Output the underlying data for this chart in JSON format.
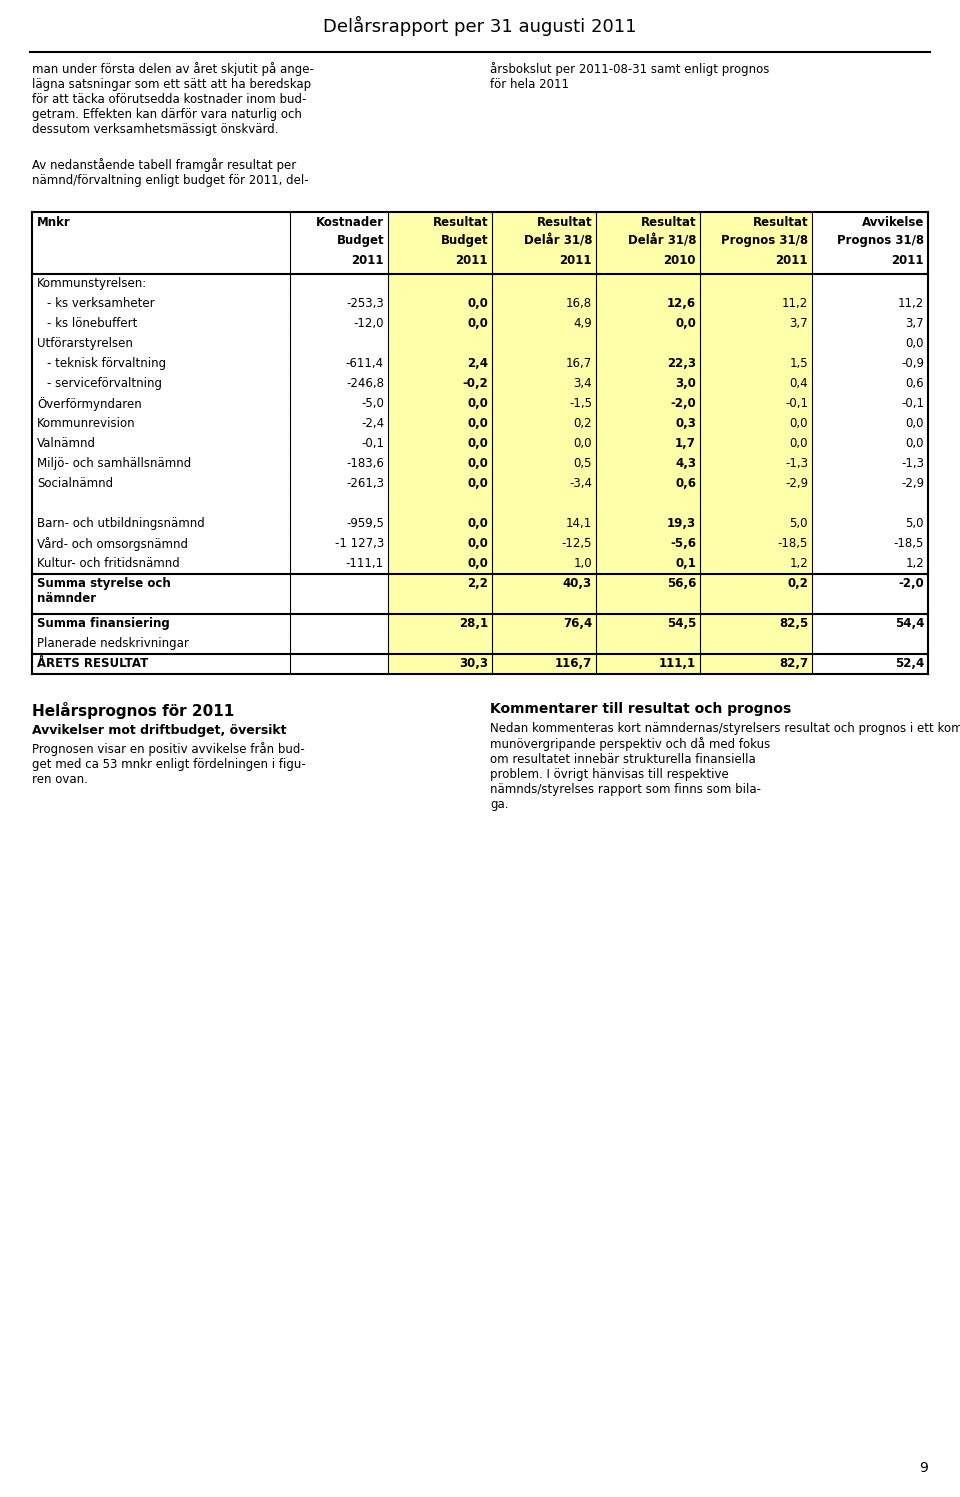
{
  "title": "Delårsrapport per 31 augusti 2011",
  "page_number": "9",
  "top_left_text": "man under första delen av året skjutit på ange-\nlägna satsningar som ett sätt att ha beredskap\nför att täcka oförutsedda kostnader inom bud-\ngetram. Effekten kan därför vara naturlig och\ndessutom verksamhetsmässigt önskvärd.",
  "top_right_text": "årsbokslut per 2011-08-31 samt enligt prognos\nför hela 2011",
  "mid_left_text": "Av nedanstående tabell framgår resultat per\nnämnd/förvaltning enligt budget för 2011, del-",
  "table_headers_row1": [
    "Mnkr",
    "Kostnader",
    "Resultat",
    "Resultat",
    "Resultat",
    "Resultat",
    "Avvikelse"
  ],
  "table_headers_row2": [
    "",
    "Budget",
    "Budget",
    "Delår 31/8",
    "Delår 31/8",
    "Prognos 31/8",
    "Prognos 31/8"
  ],
  "table_headers_row3": [
    "",
    "2011",
    "2011",
    "2011",
    "2010",
    "2011",
    "2011"
  ],
  "yellow_col_indices": [
    2,
    3,
    4,
    5
  ],
  "rows": [
    {
      "label": "Kommunstyrelsen:",
      "vals": [
        "",
        "",
        "",
        "",
        "",
        ""
      ],
      "bold_label": false,
      "indent": false,
      "sep_above": false,
      "double_height": false
    },
    {
      "label": "- ks verksamheter",
      "vals": [
        "-253,3",
        "0,0",
        "16,8",
        "12,6",
        "11,2",
        "11,2"
      ],
      "bold_label": false,
      "indent": true,
      "sep_above": false,
      "double_height": false
    },
    {
      "label": "- ks lönebuffert",
      "vals": [
        "-12,0",
        "0,0",
        "4,9",
        "0,0",
        "3,7",
        "3,7"
      ],
      "bold_label": false,
      "indent": true,
      "sep_above": false,
      "double_height": false
    },
    {
      "label": "Utförarstyrelsen",
      "vals": [
        "",
        "",
        "",
        "",
        "",
        "0,0"
      ],
      "bold_label": false,
      "indent": false,
      "sep_above": false,
      "double_height": false
    },
    {
      "label": "- teknisk förvaltning",
      "vals": [
        "-611,4",
        "2,4",
        "16,7",
        "22,3",
        "1,5",
        "-0,9"
      ],
      "bold_label": false,
      "indent": true,
      "sep_above": false,
      "double_height": false
    },
    {
      "label": "- serviceförvaltning",
      "vals": [
        "-246,8",
        "-0,2",
        "3,4",
        "3,0",
        "0,4",
        "0,6"
      ],
      "bold_label": false,
      "indent": true,
      "sep_above": false,
      "double_height": false
    },
    {
      "label": "Överförmyndaren",
      "vals": [
        "-5,0",
        "0,0",
        "-1,5",
        "-2,0",
        "-0,1",
        "-0,1"
      ],
      "bold_label": false,
      "indent": false,
      "sep_above": false,
      "double_height": false
    },
    {
      "label": "Kommunrevision",
      "vals": [
        "-2,4",
        "0,0",
        "0,2",
        "0,3",
        "0,0",
        "0,0"
      ],
      "bold_label": false,
      "indent": false,
      "sep_above": false,
      "double_height": false
    },
    {
      "label": "Valnämnd",
      "vals": [
        "-0,1",
        "0,0",
        "0,0",
        "1,7",
        "0,0",
        "0,0"
      ],
      "bold_label": false,
      "indent": false,
      "sep_above": false,
      "double_height": false
    },
    {
      "label": "Miljö- och samhällsnämnd",
      "vals": [
        "-183,6",
        "0,0",
        "0,5",
        "4,3",
        "-1,3",
        "-1,3"
      ],
      "bold_label": false,
      "indent": false,
      "sep_above": false,
      "double_height": false
    },
    {
      "label": "Socialnämnd",
      "vals": [
        "-261,3",
        "0,0",
        "-3,4",
        "0,6",
        "-2,9",
        "-2,9"
      ],
      "bold_label": false,
      "indent": false,
      "sep_above": false,
      "double_height": false
    },
    {
      "label": "",
      "vals": [
        "",
        "",
        "",
        "",
        "",
        ""
      ],
      "bold_label": false,
      "indent": false,
      "sep_above": false,
      "double_height": false
    },
    {
      "label": "Barn- och utbildningsnämnd",
      "vals": [
        "-959,5",
        "0,0",
        "14,1",
        "19,3",
        "5,0",
        "5,0"
      ],
      "bold_label": false,
      "indent": false,
      "sep_above": false,
      "double_height": false
    },
    {
      "label": "Vård- och omsorgsnämnd",
      "vals": [
        "-1 127,3",
        "0,0",
        "-12,5",
        "-5,6",
        "-18,5",
        "-18,5"
      ],
      "bold_label": false,
      "indent": false,
      "sep_above": false,
      "double_height": false
    },
    {
      "label": "Kultur- och fritidsnämnd",
      "vals": [
        "-111,1",
        "0,0",
        "1,0",
        "0,1",
        "1,2",
        "1,2"
      ],
      "bold_label": false,
      "indent": false,
      "sep_above": false,
      "double_height": false
    },
    {
      "label": "Summa styrelse och\nnämnder",
      "vals": [
        "",
        "2,2",
        "40,3",
        "56,6",
        "0,2",
        "-2,0"
      ],
      "bold_label": true,
      "indent": false,
      "sep_above": true,
      "double_height": true
    },
    {
      "label": "Summa finansiering",
      "vals": [
        "",
        "28,1",
        "76,4",
        "54,5",
        "82,5",
        "54,4"
      ],
      "bold_label": true,
      "indent": false,
      "sep_above": true,
      "double_height": false
    },
    {
      "label": "Planerade nedskrivningar",
      "vals": [
        "",
        "",
        "",
        "",
        "",
        ""
      ],
      "bold_label": false,
      "indent": false,
      "sep_above": false,
      "double_height": false
    },
    {
      "label": "ÅRETS RESULTAT",
      "vals": [
        "",
        "30,3",
        "116,7",
        "111,1",
        "82,7",
        "52,4"
      ],
      "bold_label": true,
      "indent": false,
      "sep_above": true,
      "double_height": false
    }
  ],
  "bottom_left_title": "Helårsprognos för 2011",
  "bottom_left_subtitle": "Avvikelser mot driftbudget, översikt",
  "bottom_left_text": "Prognosen visar en positiv avvikelse från bud-\nget med ca 53 mnkr enligt fördelningen i figu-\nren ovan.",
  "bottom_right_title": "Kommentarer till resultat och prognos",
  "bottom_right_text": "Nedan kommenteras kort nämndernas/styrelsers resultat och prognos i ett kom-\nmunövergripande perspektiv och då med fokus\nom resultatet innebär strukturella finansiella\nproblem. I övrigt hänvisas till respektive\nnämnds/styrelses rapport som finns som bila-\nga.",
  "bg_color": "#ffffff",
  "yellow_bg": "#ffffaa"
}
